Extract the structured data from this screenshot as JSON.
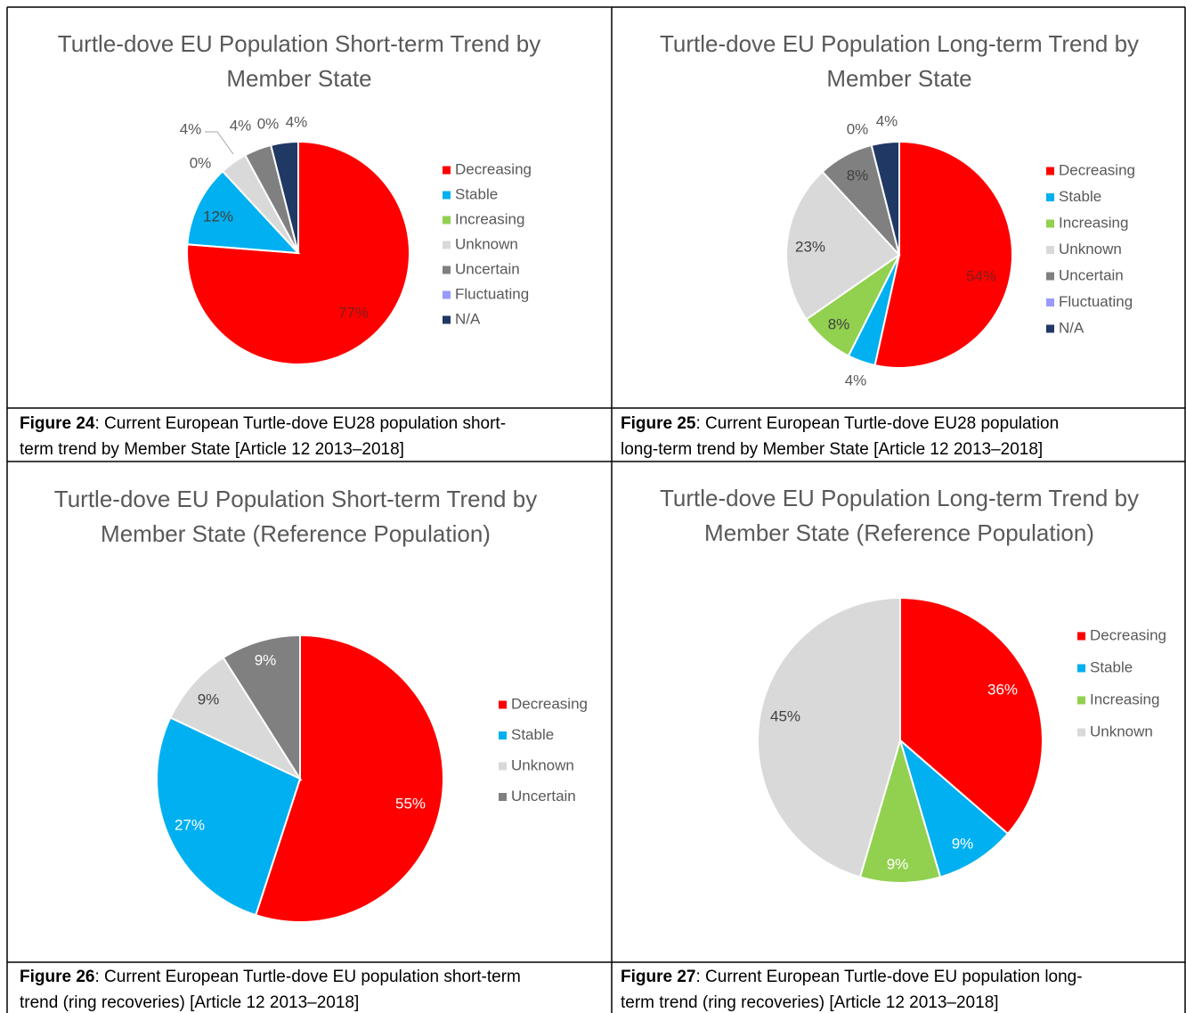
{
  "chart_data": [
    {
      "type": "pie",
      "title": "Turtle-dove EU Population Short-term Trend by Member State",
      "categories": [
        "Decreasing",
        "Stable",
        "Increasing",
        "Unknown",
        "Uncertain",
        "Fluctuating",
        "N/A"
      ],
      "values": [
        77,
        12,
        0,
        4,
        4,
        0,
        4
      ],
      "value_labels": [
        "77%",
        "12%",
        "0%",
        "4%",
        "4%",
        "0%",
        "4%"
      ],
      "colors": [
        "#ff0000",
        "#00b0f0",
        "#92d050",
        "#d9d9d9",
        "#808080",
        "#9999ff",
        "#203864"
      ]
    },
    {
      "type": "pie",
      "title": "Turtle-dove EU Population Long-term Trend by Member State",
      "categories": [
        "Decreasing",
        "Stable",
        "Increasing",
        "Unknown",
        "Uncertain",
        "Fluctuating",
        "N/A"
      ],
      "values": [
        54,
        4,
        8,
        23,
        8,
        0,
        4
      ],
      "value_labels": [
        "54%",
        "4%",
        "8%",
        "23%",
        "8%",
        "0%",
        "4%"
      ],
      "colors": [
        "#ff0000",
        "#00b0f0",
        "#92d050",
        "#d9d9d9",
        "#808080",
        "#9999ff",
        "#203864"
      ]
    },
    {
      "type": "pie",
      "title": "Turtle-dove EU Population Short-term Trend by Member State (Reference Population)",
      "categories": [
        "Decreasing",
        "Stable",
        "Unknown",
        "Uncertain"
      ],
      "values": [
        55,
        27,
        9,
        9
      ],
      "value_labels": [
        "55%",
        "27%",
        "9%",
        "9%"
      ],
      "colors": [
        "#ff0000",
        "#00b0f0",
        "#d9d9d9",
        "#808080"
      ]
    },
    {
      "type": "pie",
      "title": "Turtle-dove EU Population Long-term Trend by Member State (Reference Population)",
      "categories": [
        "Decreasing",
        "Stable",
        "Increasing",
        "Unknown"
      ],
      "values": [
        36,
        9,
        9,
        45
      ],
      "value_labels": [
        "36%",
        "9%",
        "9%",
        "45%"
      ],
      "colors": [
        "#ff0000",
        "#00b0f0",
        "#92d050",
        "#d9d9d9"
      ]
    }
  ],
  "captions": [
    {
      "label": "Figure 24",
      "lines": [
        ": Current European Turtle-dove EU28 population short-",
        "term trend by Member State [Article 12 2013–2018]"
      ]
    },
    {
      "label": "Figure 25",
      "lines": [
        ": Current European Turtle-dove EU28 population",
        "long-term trend by Member State [Article 12 2013–2018]"
      ]
    },
    {
      "label": "Figure 26",
      "lines": [
        ": Current European Turtle-dove EU population short-term",
        "trend (ring recoveries) [Article 12 2013–2018]"
      ]
    },
    {
      "label": "Figure 27",
      "lines": [
        ": Current European Turtle-dove EU population long-",
        "term trend (ring recoveries) [Article 12 2013–2018]"
      ]
    }
  ]
}
